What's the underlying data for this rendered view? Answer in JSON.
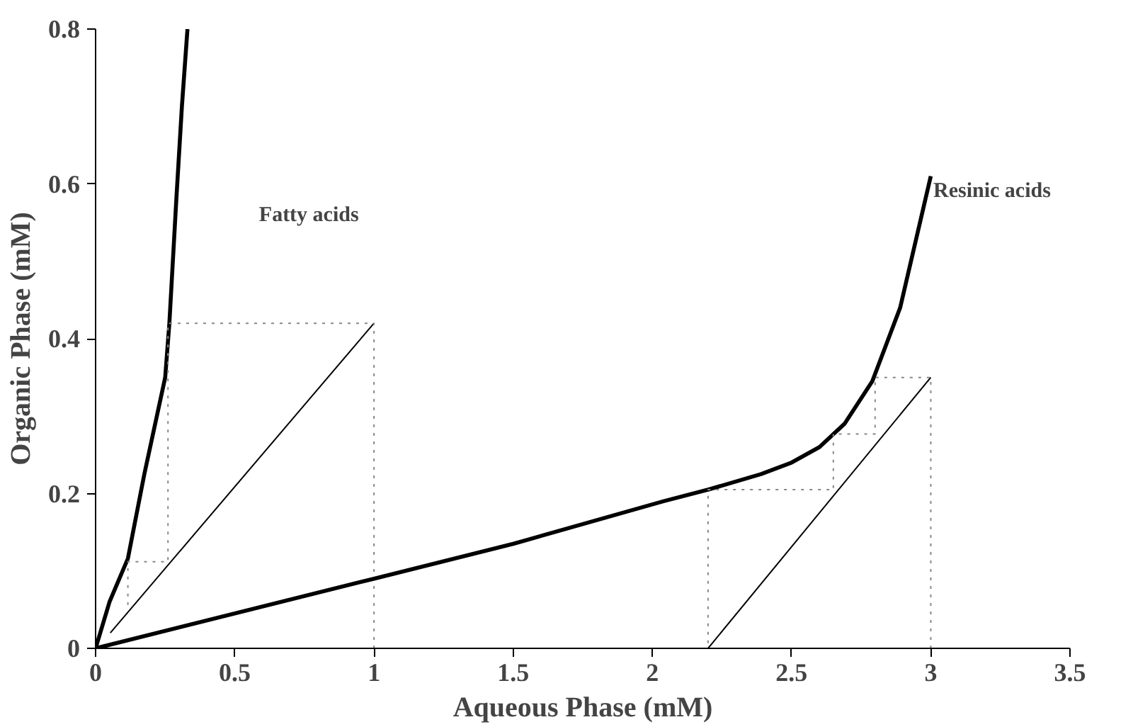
{
  "chart_data": {
    "type": "line",
    "xlabel": "Aqueous Phase (mM)",
    "ylabel": "Organic Phase (mM)",
    "xlim": [
      0,
      3.5
    ],
    "ylim": [
      0,
      0.8
    ],
    "xticks": [
      0,
      0.5,
      1,
      1.5,
      2,
      2.5,
      3,
      3.5
    ],
    "yticks": [
      0,
      0.2,
      0.4,
      0.6,
      0.8
    ],
    "grid": false,
    "marker": "none",
    "series": [
      {
        "color": "#000000",
        "line_style": "solid",
        "x": [
          0,
          0.05,
          0.116,
          0.175,
          0.25,
          0.265,
          0.29,
          0.31,
          0.33
        ],
        "values": [
          0,
          0.06,
          0.116,
          0.225,
          0.35,
          0.42,
          0.58,
          0.7,
          0.8
        ]
      },
      {
        "color": "#000000",
        "line_style": "solid",
        "x": [
          0.053,
          1.0
        ],
        "values": [
          0.02,
          0.42
        ]
      },
      {
        "color": "#888888",
        "line_style": "dotted",
        "x": [
          1.0,
          1.0,
          0.265,
          0.26,
          0.26,
          0.116,
          0.116
        ],
        "values": [
          0,
          0.42,
          0.42,
          0.42,
          0.112,
          0.112,
          0.05
        ]
      },
      {
        "color": "#000000",
        "line_style": "solid",
        "x": [
          0,
          1.0,
          1.5,
          2.04,
          2.2,
          2.39,
          2.5,
          2.6,
          2.69,
          2.79,
          2.89,
          3.0
        ],
        "values": [
          0,
          0.09,
          0.135,
          0.19,
          0.205,
          0.225,
          0.24,
          0.26,
          0.29,
          0.345,
          0.44,
          0.61
        ]
      },
      {
        "color": "#000000",
        "line_style": "solid",
        "x": [
          2.2,
          3.0
        ],
        "values": [
          0,
          0.35
        ]
      },
      {
        "color": "#888888",
        "line_style": "dotted",
        "x": [
          3.0,
          3.0,
          2.8,
          2.8,
          2.65,
          2.65,
          2.2,
          2.2
        ],
        "values": [
          0,
          0.35,
          0.35,
          0.277,
          0.277,
          0.205,
          0.205,
          0
        ]
      }
    ],
    "annotations": [
      "Fatty acids",
      "Resinic acids"
    ]
  }
}
